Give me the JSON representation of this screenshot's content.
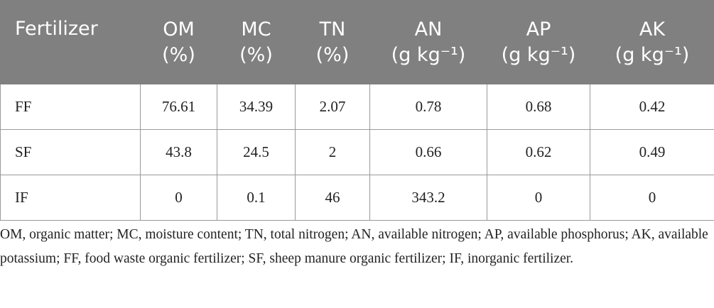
{
  "table": {
    "header": [
      {
        "name": "Fertilizer"
      },
      {
        "name": "OM",
        "unit": "(%)"
      },
      {
        "name": "MC",
        "unit": "(%)"
      },
      {
        "name": "TN",
        "unit": "(%)"
      },
      {
        "name": "AN",
        "unit": "(g kg⁻¹)"
      },
      {
        "name": "AP",
        "unit": "(g kg⁻¹)"
      },
      {
        "name": "AK",
        "unit": "(g kg⁻¹)"
      }
    ],
    "rows": [
      [
        "FF",
        "76.61",
        "34.39",
        "2.07",
        "0.78",
        "0.68",
        "0.42"
      ],
      [
        "SF",
        "43.8",
        "24.5",
        "2",
        "0.66",
        "0.62",
        "0.49"
      ],
      [
        "IF",
        "0",
        "0.1",
        "46",
        "343.2",
        "0",
        "0"
      ]
    ]
  },
  "footnote": "OM, organic matter; MC, moisture content; TN, total nitrogen; AN, available nitrogen; AP, available phosphorus; AK, available potassium; FF, food waste organic fertilizer; SF, sheep manure organic fertilizer; IF, inorganic fertilizer."
}
